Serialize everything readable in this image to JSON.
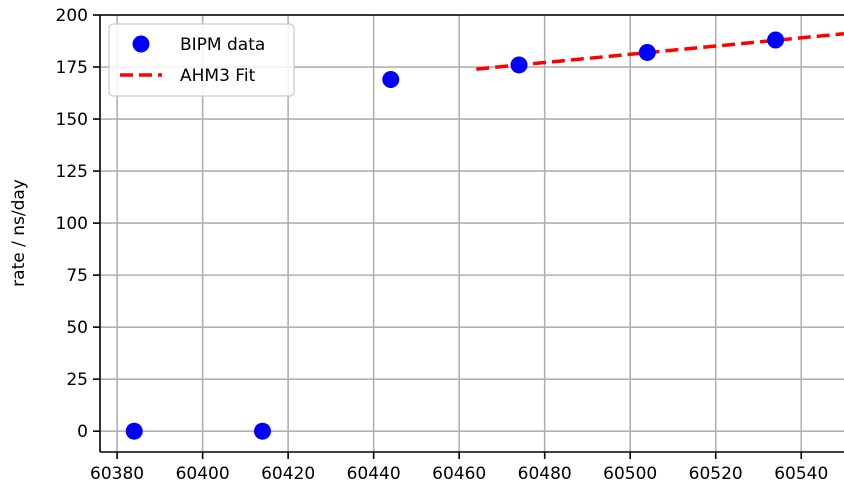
{
  "chart_data": {
    "type": "scatter",
    "title": "",
    "xlabel": "",
    "ylabel": "rate / ns/day",
    "xlim": [
      60376,
      60550
    ],
    "ylim": [
      -10,
      200
    ],
    "grid": true,
    "legend_position": "upper-left",
    "x_ticks": [
      60380,
      60400,
      60420,
      60440,
      60460,
      60480,
      60500,
      60520,
      60540
    ],
    "x_tick_labels": [
      "60380",
      "60400",
      "60420",
      "60440",
      "60460",
      "60480",
      "60500",
      "60520",
      "60540"
    ],
    "y_ticks": [
      0,
      25,
      50,
      75,
      100,
      125,
      150,
      175,
      200
    ],
    "y_tick_labels": [
      "0",
      "25",
      "50",
      "75",
      "100",
      "125",
      "150",
      "175",
      "200"
    ],
    "series": [
      {
        "name": "BIPM data",
        "kind": "scatter",
        "color": "#0000ff",
        "points": [
          {
            "x": 60384,
            "y": 0
          },
          {
            "x": 60414,
            "y": 0
          },
          {
            "x": 60444,
            "y": 169
          },
          {
            "x": 60474,
            "y": 176
          },
          {
            "x": 60504,
            "y": 182
          },
          {
            "x": 60534,
            "y": 188
          }
        ]
      },
      {
        "name": "AHM3 Fit",
        "kind": "line",
        "style": "dashed",
        "color": "#ff0000",
        "points": [
          {
            "x": 60464,
            "y": 174
          },
          {
            "x": 60550,
            "y": 191
          }
        ]
      }
    ]
  }
}
